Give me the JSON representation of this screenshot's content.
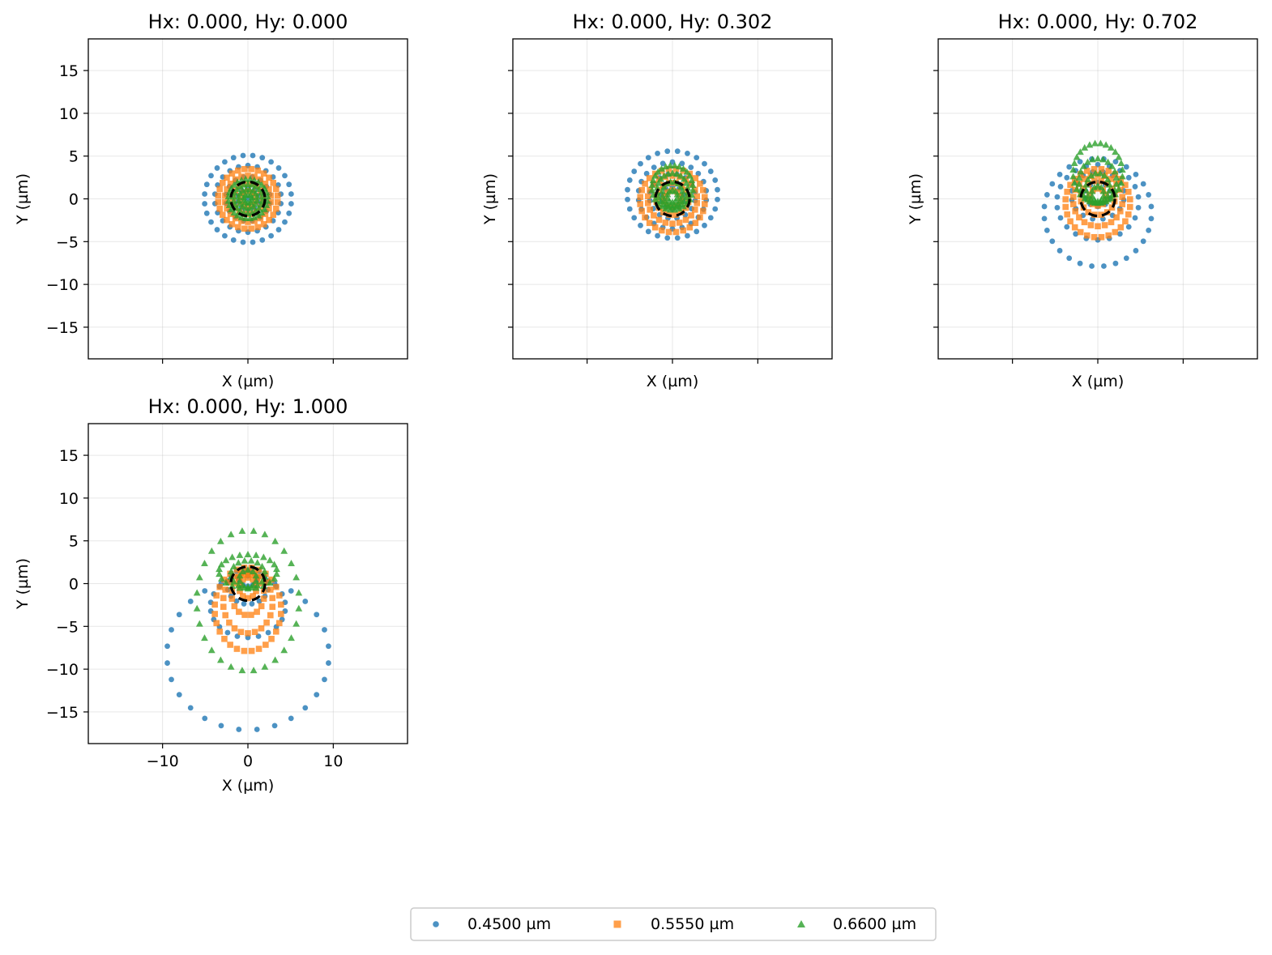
{
  "chart_data": {
    "type": "scatter",
    "axis_range": [
      -18.7,
      18.7
    ],
    "x_ticks": [
      -10,
      0,
      10
    ],
    "y_ticks": [
      -15,
      -10,
      -5,
      0,
      5,
      10,
      15
    ],
    "x_tick_labels": [
      "−10",
      "0",
      "10"
    ],
    "y_tick_labels": [
      "−15",
      "−10",
      "−5",
      "0",
      "5",
      "10",
      "15"
    ],
    "xlabel": "X (µm)",
    "ylabel": "Y (µm)",
    "grid": true,
    "legend_placement": "bottom-center",
    "airy_radius": 2.0,
    "series": [
      {
        "name": "0.4500 µm",
        "marker": "circle",
        "color": "#1f77b4"
      },
      {
        "name": "0.5550 µm",
        "marker": "square",
        "color": "#ff7f0e"
      },
      {
        "name": "0.6600 µm",
        "marker": "triangle",
        "color": "#2ca02c"
      }
    ],
    "panels": [
      {
        "title": "Hx: 0.000, Hy: 0.000",
        "rings": [
          [
            {
              "cx": 0,
              "cy": 0,
              "rx": 5.1,
              "ry": 5.1,
              "n": 28
            },
            {
              "cx": 0,
              "cy": 0,
              "rx": 3.9,
              "ry": 3.9,
              "n": 22
            },
            {
              "cx": 0,
              "cy": 0,
              "rx": 2.6,
              "ry": 2.6,
              "n": 16
            },
            {
              "cx": 0,
              "cy": 0,
              "rx": 1.3,
              "ry": 1.3,
              "n": 10
            },
            {
              "cx": 0,
              "cy": 0,
              "rx": 0.0,
              "ry": 0.0,
              "n": 1
            }
          ],
          [
            {
              "cx": 0,
              "cy": 0,
              "rx": 3.5,
              "ry": 3.5,
              "n": 28
            },
            {
              "cx": 0,
              "cy": 0,
              "rx": 2.7,
              "ry": 2.7,
              "n": 22
            },
            {
              "cx": 0,
              "cy": 0,
              "rx": 1.8,
              "ry": 1.8,
              "n": 16
            },
            {
              "cx": 0,
              "cy": 0,
              "rx": 0.9,
              "ry": 0.9,
              "n": 10
            }
          ],
          [
            {
              "cx": 0,
              "cy": 0,
              "rx": 2.3,
              "ry": 2.3,
              "n": 28
            },
            {
              "cx": 0,
              "cy": 0,
              "rx": 1.7,
              "ry": 1.7,
              "n": 22
            },
            {
              "cx": 0,
              "cy": 0,
              "rx": 1.1,
              "ry": 1.1,
              "n": 16
            },
            {
              "cx": 0,
              "cy": 0,
              "rx": 0.5,
              "ry": 0.5,
              "n": 10
            }
          ]
        ]
      },
      {
        "title": "Hx: 0.000, Hy: 0.302",
        "rings": [
          [
            {
              "cx": 0,
              "cy": 0.5,
              "rx": 5.3,
              "ry": 5.1,
              "n": 28
            },
            {
              "cx": 0,
              "cy": 0.4,
              "rx": 4.0,
              "ry": 3.9,
              "n": 22
            },
            {
              "cx": 0,
              "cy": 0.3,
              "rx": 2.7,
              "ry": 2.6,
              "n": 16
            },
            {
              "cx": 0,
              "cy": 0.1,
              "rx": 1.3,
              "ry": 1.3,
              "n": 10
            }
          ],
          [
            {
              "cx": 0,
              "cy": -0.2,
              "rx": 3.8,
              "ry": 3.7,
              "n": 28
            },
            {
              "cx": 0,
              "cy": -0.1,
              "rx": 2.9,
              "ry": 2.8,
              "n": 22
            },
            {
              "cx": 0,
              "cy": 0,
              "rx": 1.9,
              "ry": 1.9,
              "n": 16
            },
            {
              "cx": 0,
              "cy": 0,
              "rx": 1.0,
              "ry": 1.0,
              "n": 10
            }
          ],
          [
            {
              "cx": 0,
              "cy": 1.3,
              "rx": 2.4,
              "ry": 2.6,
              "n": 28
            },
            {
              "cx": 0,
              "cy": 1.0,
              "rx": 1.8,
              "ry": 2.0,
              "n": 22
            },
            {
              "cx": 0,
              "cy": 0.6,
              "rx": 1.2,
              "ry": 1.4,
              "n": 16
            },
            {
              "cx": 0,
              "cy": 0.3,
              "rx": 0.6,
              "ry": 0.7,
              "n": 10
            }
          ]
        ]
      },
      {
        "title": "Hx: 0.000, Hy: 0.702",
        "rings": [
          [
            {
              "cx": 0,
              "cy": -1.6,
              "rx": 6.3,
              "ry": 6.3,
              "n": 28
            },
            {
              "cx": 0,
              "cy": -0.4,
              "rx": 4.8,
              "ry": 4.4,
              "n": 22
            },
            {
              "cx": 0,
              "cy": 0.4,
              "rx": 3.1,
              "ry": 2.8,
              "n": 16
            },
            {
              "cx": 0,
              "cy": 0.5,
              "rx": 1.5,
              "ry": 1.4,
              "n": 10
            }
          ],
          [
            {
              "cx": 0,
              "cy": -0.5,
              "rx": 3.8,
              "ry": 4.0,
              "n": 28
            },
            {
              "cx": 0,
              "cy": -0.2,
              "rx": 2.9,
              "ry": 3.0,
              "n": 22
            },
            {
              "cx": 0,
              "cy": 0.1,
              "rx": 2.0,
              "ry": 2.0,
              "n": 16
            },
            {
              "cx": 0,
              "cy": 0.2,
              "rx": 1.0,
              "ry": 1.0,
              "n": 10
            }
          ],
          [
            {
              "cx": 0,
              "cy": 3.0,
              "rx": 2.9,
              "ry": 3.5,
              "n": 28
            },
            {
              "cx": 0,
              "cy": 2.1,
              "rx": 2.2,
              "ry": 2.6,
              "n": 22
            },
            {
              "cx": 0,
              "cy": 1.3,
              "rx": 1.4,
              "ry": 1.7,
              "n": 16
            },
            {
              "cx": 0,
              "cy": 0.6,
              "rx": 0.7,
              "ry": 0.9,
              "n": 10
            }
          ]
        ]
      },
      {
        "title": "Hx: 0.000, Hy: 1.000",
        "rings": [
          [
            {
              "cx": 0,
              "cy": -8.3,
              "rx": 9.5,
              "ry": 8.8,
              "n": 28
            },
            {
              "cx": 0,
              "cy": -2.7,
              "rx": 4.4,
              "ry": 3.6,
              "n": 22
            },
            {
              "cx": 0,
              "cy": -0.3,
              "rx": 2.4,
              "ry": 2.1,
              "n": 16
            },
            {
              "cx": 0,
              "cy": 0.6,
              "rx": 1.0,
              "ry": 0.9,
              "n": 10
            }
          ],
          [
            {
              "cx": 0,
              "cy": -3.0,
              "rx": 3.9,
              "ry": 4.9,
              "n": 28
            },
            {
              "cx": 0,
              "cy": -2.2,
              "rx": 2.9,
              "ry": 3.6,
              "n": 22
            },
            {
              "cx": 0,
              "cy": -1.3,
              "rx": 1.9,
              "ry": 2.4,
              "n": 16
            },
            {
              "cx": 0,
              "cy": -0.5,
              "rx": 1.0,
              "ry": 1.2,
              "n": 10
            }
          ],
          [
            {
              "cx": 0,
              "cy": -2.0,
              "rx": 6.0,
              "ry": 8.2,
              "n": 28
            },
            {
              "cx": 0,
              "cy": 1.4,
              "rx": 3.4,
              "ry": 2.0,
              "n": 22
            },
            {
              "cx": 0,
              "cy": 1.1,
              "rx": 2.0,
              "ry": 1.6,
              "n": 16
            },
            {
              "cx": 0,
              "cy": 0.6,
              "rx": 1.0,
              "ry": 1.0,
              "n": 10
            }
          ]
        ]
      }
    ]
  }
}
